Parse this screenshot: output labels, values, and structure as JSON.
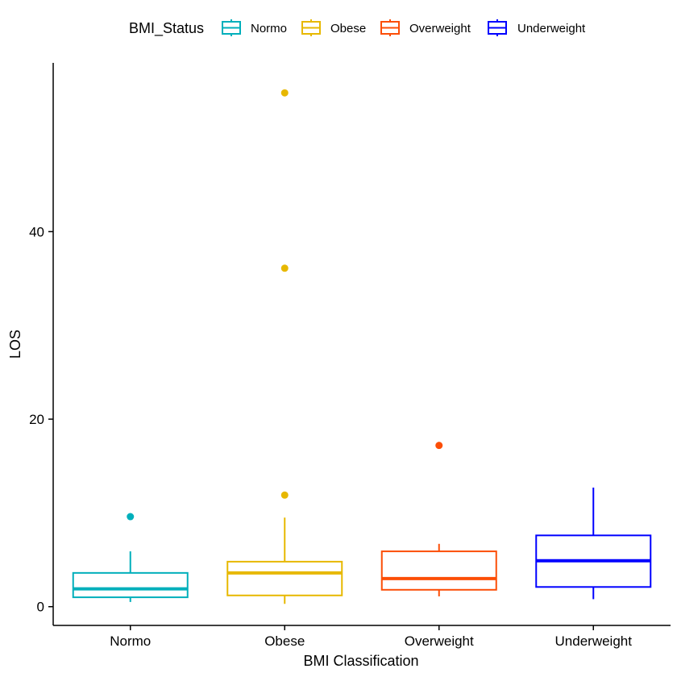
{
  "chart_data": {
    "type": "boxplot",
    "xlabel": "BMI Classification",
    "ylabel": "LOS",
    "ylim": [
      -2,
      58
    ],
    "yticks": [
      0,
      20,
      40
    ],
    "grid": false,
    "legend": {
      "title": "BMI_Status",
      "position": "top",
      "entries": [
        "Normo",
        "Obese",
        "Overweight",
        "Underweight"
      ]
    },
    "categories": [
      "Normo",
      "Obese",
      "Overweight",
      "Underweight"
    ],
    "series": [
      {
        "name": "Normo",
        "color": "#00AFBB",
        "whisker_low": 0.5,
        "q1": 1.0,
        "median": 1.9,
        "q3": 3.6,
        "whisker_high": 5.9,
        "outliers": [
          9.6
        ]
      },
      {
        "name": "Obese",
        "color": "#E7B800",
        "whisker_low": 0.3,
        "q1": 1.2,
        "median": 3.6,
        "q3": 4.8,
        "whisker_high": 9.5,
        "outliers": [
          11.9,
          36.1,
          54.8
        ]
      },
      {
        "name": "Overweight",
        "color": "#FC4E07",
        "whisker_low": 1.1,
        "q1": 1.8,
        "median": 3.0,
        "q3": 5.9,
        "whisker_high": 6.7,
        "outliers": [
          17.2
        ]
      },
      {
        "name": "Underweight",
        "color": "#0000FF",
        "whisker_low": 0.8,
        "q1": 2.1,
        "median": 4.9,
        "q3": 7.6,
        "whisker_high": 12.7,
        "outliers": []
      }
    ]
  }
}
